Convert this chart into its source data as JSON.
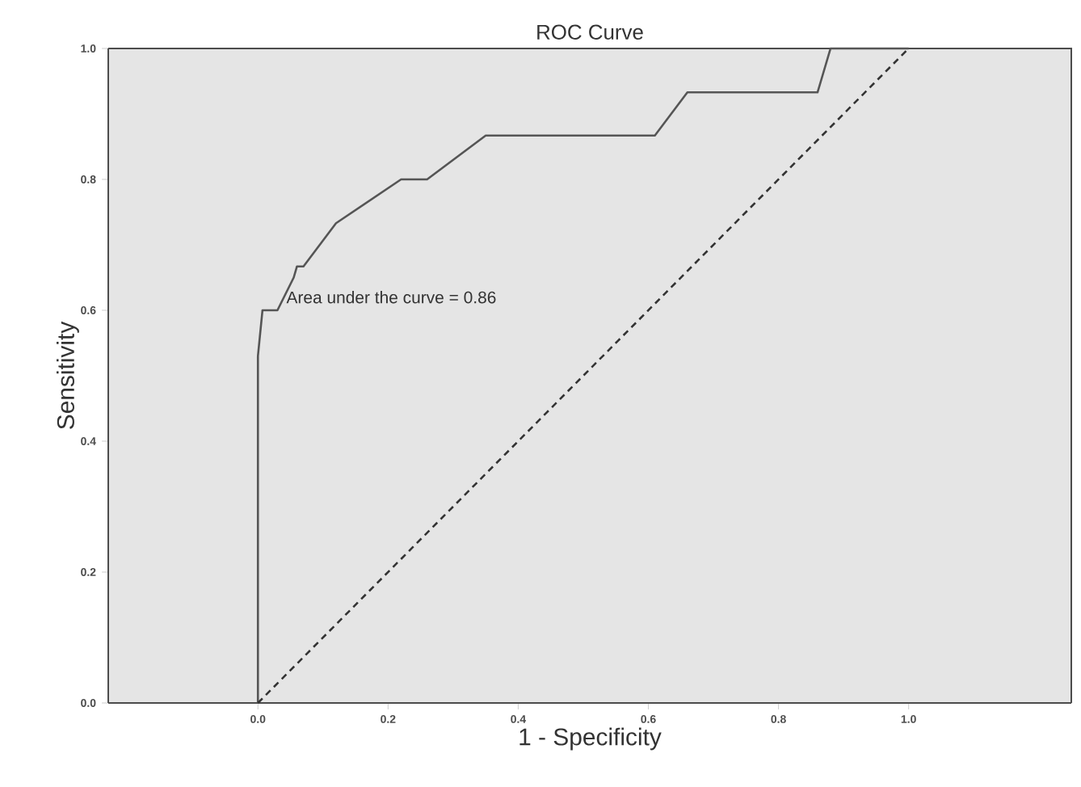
{
  "chart_data": {
    "type": "line",
    "title": "ROC Curve",
    "xlabel": "1 - Specificity",
    "ylabel": "Sensitivity",
    "x": [
      0,
      0,
      0.005,
      0.007,
      0.03,
      0.055,
      0.06,
      0.07,
      0.12,
      0.22,
      0.26,
      0.35,
      0.61,
      0.66,
      0.86,
      0.88,
      1
    ],
    "series": [
      {
        "color": "#555555",
        "line_style": "solid",
        "values": [
          0,
          0.53,
          0.58,
          0.6,
          0.6,
          0.65,
          0.667,
          0.667,
          0.733,
          0.8,
          0.8,
          0.867,
          0.867,
          0.933,
          0.933,
          1,
          1
        ]
      },
      {
        "color": "#333333",
        "line_style": "dashed",
        "x": [
          0,
          1
        ],
        "values": [
          0,
          1
        ]
      }
    ],
    "xlim": [
      -0.23,
      1.25
    ],
    "ylim": [
      0,
      1
    ],
    "xticks": [
      {
        "value": 0,
        "label": "0.0"
      },
      0.2,
      0.4,
      0.6,
      0.8,
      {
        "value": 1,
        "label": "1.0"
      }
    ],
    "yticks": [
      {
        "value": 0,
        "label": "0.0"
      },
      0.2,
      0.4,
      0.6,
      0.8,
      {
        "value": 1,
        "label": "1.0"
      }
    ],
    "grid": false,
    "marker": "none",
    "annotations": [
      "Area under the curve = 0.86"
    ]
  }
}
